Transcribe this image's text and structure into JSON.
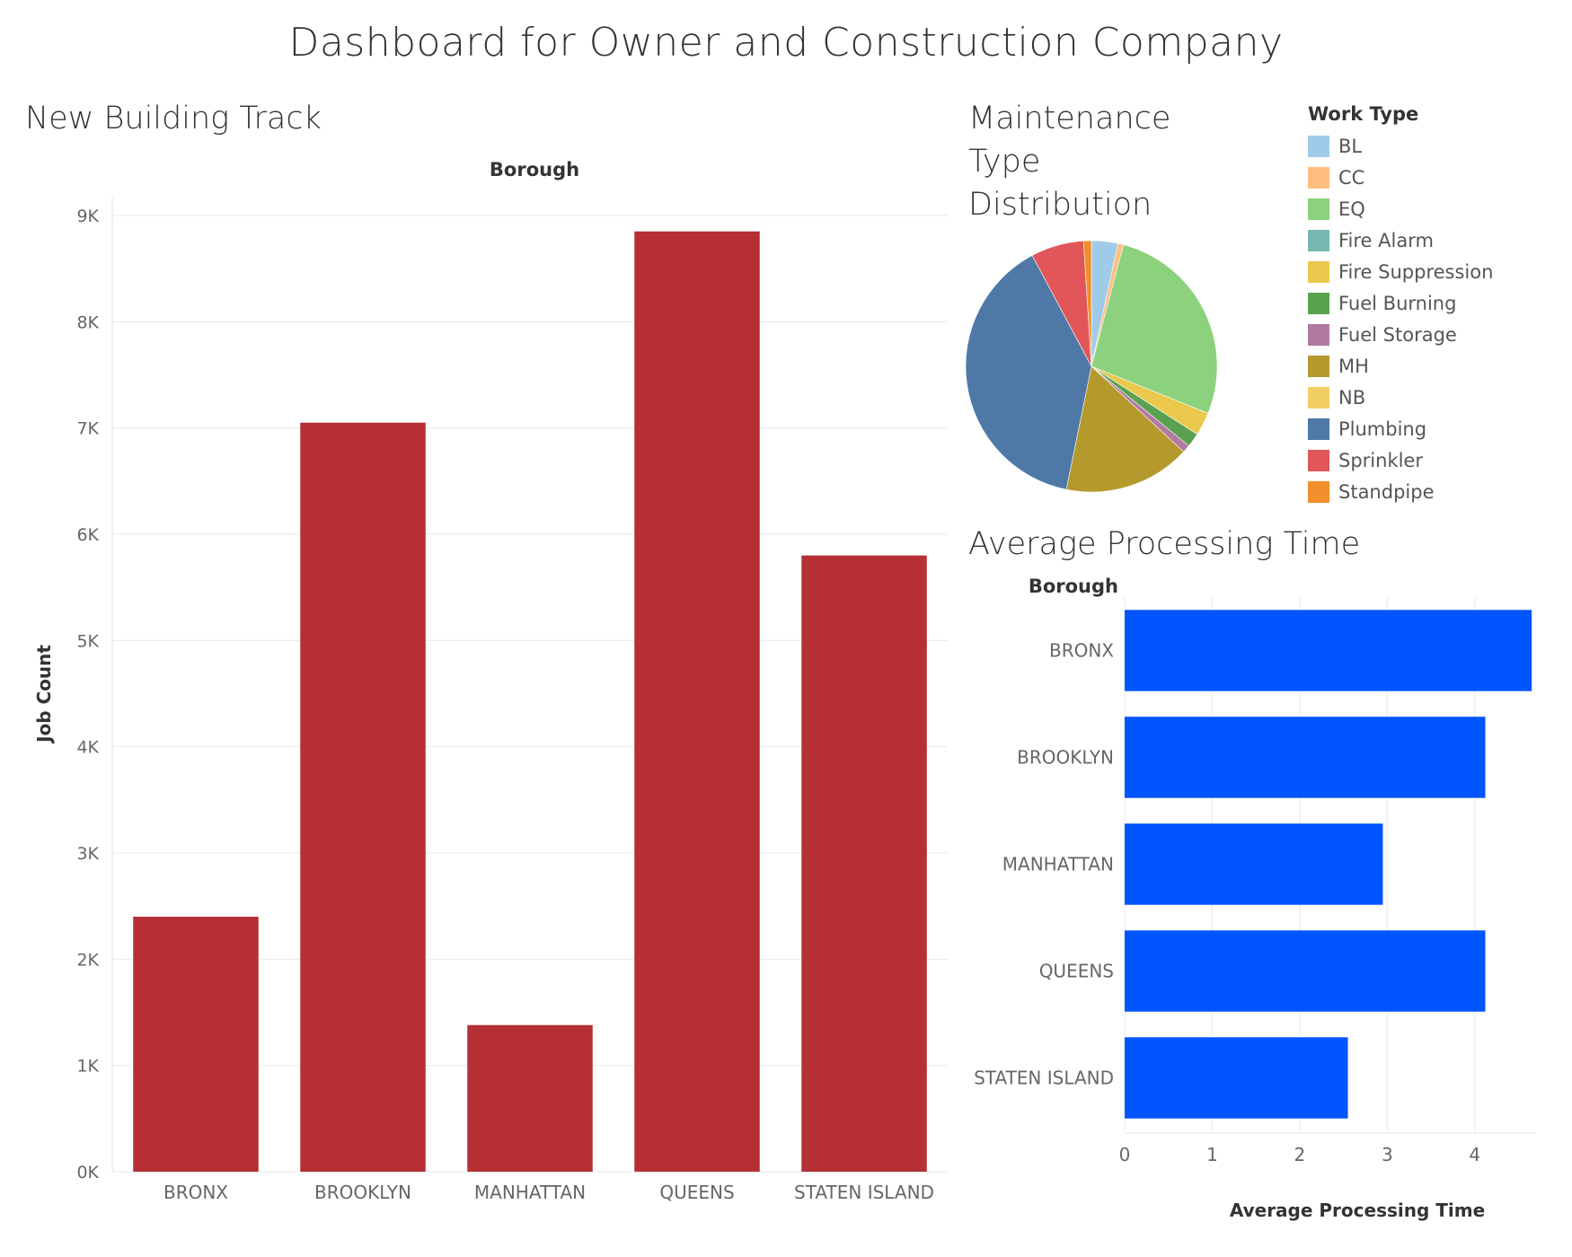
{
  "dashboard_title": "Dashboard for Owner and Construction Company",
  "new_building_title": "New Building Track",
  "maintenance_title_lines": [
    "Maintenance",
    "Type",
    "Distribution"
  ],
  "processing_title": "Average Processing Time",
  "chart_data": [
    {
      "type": "bar",
      "title": "New Building Track",
      "header_label": "Borough",
      "xlabel": "",
      "ylabel": "Job Count",
      "categories": [
        "BRONX",
        "BROOKLYN",
        "MANHATTAN",
        "QUEENS",
        "STATEN ISLAND"
      ],
      "values": [
        2400,
        7050,
        1380,
        8850,
        5800
      ],
      "ylim": [
        0,
        9000
      ],
      "yticks": [
        {
          "value": 0,
          "label": "0K"
        },
        {
          "value": 1000,
          "label": "1K"
        },
        {
          "value": 2000,
          "label": "2K"
        },
        {
          "value": 3000,
          "label": "3K"
        },
        {
          "value": 4000,
          "label": "4K"
        },
        {
          "value": 5000,
          "label": "5K"
        },
        {
          "value": 6000,
          "label": "6K"
        },
        {
          "value": 7000,
          "label": "7K"
        },
        {
          "value": 8000,
          "label": "8K"
        },
        {
          "value": 9000,
          "label": "9K"
        }
      ],
      "grid": true,
      "color": "#b52f33"
    },
    {
      "type": "pie",
      "title": "Maintenance Type Distribution",
      "legend_title": "Work Type",
      "legend_position": "right",
      "slices": [
        {
          "label": "BL",
          "value": 3.4,
          "color": "#a0cbe8"
        },
        {
          "label": "CC",
          "value": 0.7,
          "color": "#ffbe7d"
        },
        {
          "label": "EQ",
          "value": 27.0,
          "color": "#8cd17d"
        },
        {
          "label": "Fire Alarm",
          "value": 0.0,
          "color": "#76b7b2"
        },
        {
          "label": "Fire Suppression",
          "value": 3.0,
          "color": "#e9c84c"
        },
        {
          "label": "Fuel Burning",
          "value": 1.8,
          "color": "#59a14f"
        },
        {
          "label": "Fuel Storage",
          "value": 1.0,
          "color": "#b07aa1"
        },
        {
          "label": "MH",
          "value": 16.3,
          "color": "#b6992d"
        },
        {
          "label": "NB",
          "value": 0.0,
          "color": "#f1ce63"
        },
        {
          "label": "Plumbing",
          "value": 39.0,
          "color": "#4e79a7"
        },
        {
          "label": "Sprinkler",
          "value": 6.8,
          "color": "#e15759"
        },
        {
          "label": "Standpipe",
          "value": 1.0,
          "color": "#f28e2b"
        }
      ]
    },
    {
      "type": "bar",
      "orientation": "horizontal",
      "title": "Average Processing Time",
      "header_label": "Borough",
      "xlabel": "Average Processing Time",
      "ylabel": "",
      "categories": [
        "BRONX",
        "BROOKLYN",
        "MANHATTAN",
        "QUEENS",
        "STATEN ISLAND"
      ],
      "values": [
        4.65,
        4.12,
        2.95,
        4.12,
        2.55
      ],
      "xlim": [
        0,
        4.7
      ],
      "xticks": [
        {
          "value": 0,
          "label": "0"
        },
        {
          "value": 1,
          "label": "1"
        },
        {
          "value": 2,
          "label": "2"
        },
        {
          "value": 3,
          "label": "3"
        },
        {
          "value": 4,
          "label": "4"
        }
      ],
      "grid": true,
      "color": "#0055ff"
    }
  ]
}
